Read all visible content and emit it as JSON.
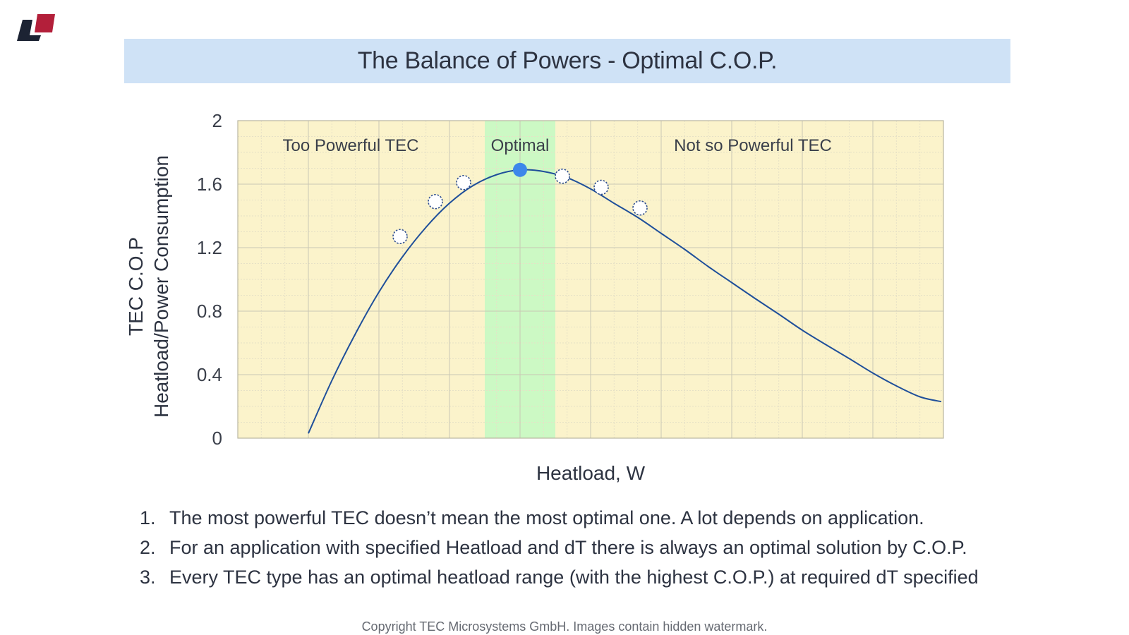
{
  "title": "The Balance of Powers - Optimal C.O.P.",
  "logo": {
    "colors": {
      "dark": "#1c2333",
      "red": "#b31f3a"
    }
  },
  "chart_data": {
    "type": "line",
    "title": "The Balance of Powers - Optimal C.O.P.",
    "xlabel": "Heatload, W",
    "ylabel_lines": [
      "TEC C.O.P",
      "Heatload/Power Consumption"
    ],
    "ylim": [
      0,
      2
    ],
    "y_ticks": [
      0,
      0.4,
      0.8,
      1.2,
      1.6,
      2
    ],
    "y_tick_labels": [
      "0",
      "0.4",
      "0.8",
      "1.2",
      "1.6",
      "2"
    ],
    "x_ticks_labeled": false,
    "xlim": [
      0,
      10
    ],
    "grid": true,
    "colors": {
      "background": "#fbf3cb",
      "optimal_band": "#ccf9c4",
      "grid_major": "#c9c7b4",
      "grid_minor": "#e6e1c6",
      "curve": "#1f4f9a",
      "optimal_point": "#3d87ea",
      "marker_stroke": "#2f4f8f"
    },
    "regions": [
      {
        "label": "Too Powerful TEC",
        "x_range": [
          0,
          3.5
        ]
      },
      {
        "label": "Optimal",
        "x_range": [
          3.5,
          4.5
        ],
        "highlight": true
      },
      {
        "label": "Not so Powerful TEC",
        "x_range": [
          4.5,
          10
        ]
      }
    ],
    "series": [
      {
        "x": [
          1.0,
          1.33,
          1.67,
          2.0,
          2.33,
          2.67,
          3.0,
          3.33,
          3.67,
          4.0,
          4.33,
          4.67,
          5.0,
          5.33,
          5.67,
          6.0,
          6.33,
          6.67,
          7.0,
          7.33,
          7.67,
          8.0,
          8.33,
          8.67,
          9.0,
          9.33,
          9.67,
          9.97
        ],
        "y": [
          0.03,
          0.36,
          0.66,
          0.92,
          1.14,
          1.33,
          1.48,
          1.59,
          1.66,
          1.69,
          1.68,
          1.64,
          1.57,
          1.48,
          1.39,
          1.29,
          1.19,
          1.08,
          0.98,
          0.88,
          0.78,
          0.68,
          0.59,
          0.5,
          0.41,
          0.33,
          0.26,
          0.23
        ]
      }
    ],
    "markers": [
      {
        "x": 2.3,
        "y": 1.27,
        "style": "open"
      },
      {
        "x": 2.8,
        "y": 1.49,
        "style": "open"
      },
      {
        "x": 3.2,
        "y": 1.61,
        "style": "open"
      },
      {
        "x": 4.0,
        "y": 1.69,
        "style": "filled"
      },
      {
        "x": 4.6,
        "y": 1.65,
        "style": "open"
      },
      {
        "x": 5.15,
        "y": 1.58,
        "style": "open"
      },
      {
        "x": 5.7,
        "y": 1.45,
        "style": "open"
      }
    ]
  },
  "notes": [
    {
      "num": "1.",
      "text": "The most powerful TEC doesn’t mean the most optimal one. A lot depends on application."
    },
    {
      "num": "2.",
      "text": "For an application with specified Heatload and dT there is always an optimal solution by C.O.P."
    },
    {
      "num": "3.",
      "text": "Every TEC type has an optimal heatload range (with the highest C.O.P.) at required dT specified"
    }
  ],
  "copyright": "Copyright TEC Microsystems GmbH. Images contain hidden watermark."
}
